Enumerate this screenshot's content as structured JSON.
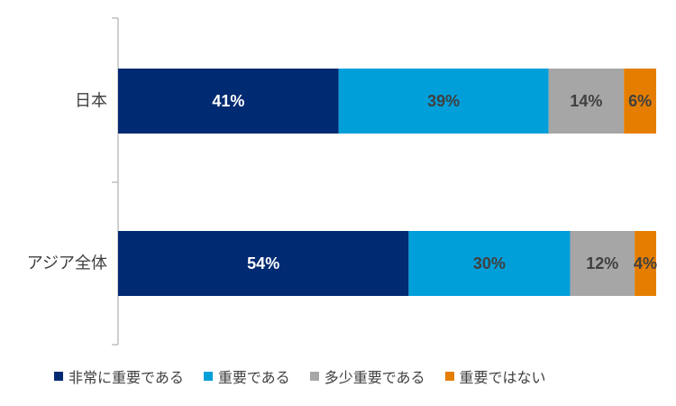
{
  "chart_data": {
    "type": "bar",
    "orientation": "horizontal",
    "stacked": true,
    "categories": [
      "日本",
      "アジア全体"
    ],
    "series": [
      {
        "name": "非常に重要である",
        "values": [
          41,
          54
        ],
        "color": "#002a72",
        "label_color": "#ffffff"
      },
      {
        "name": "重要である",
        "values": [
          39,
          30
        ],
        "color": "#009fda",
        "label_color": "#404040"
      },
      {
        "name": "多少重要である",
        "values": [
          14,
          12
        ],
        "color": "#a6a6a6",
        "label_color": "#404040"
      },
      {
        "name": "重要ではない",
        "values": [
          6,
          4
        ],
        "color": "#e57e00",
        "label_color": "#404040"
      }
    ],
    "value_labels": [
      [
        "41%",
        "39%",
        "14%",
        "6%"
      ],
      [
        "54%",
        "30%",
        "12%",
        "4%"
      ]
    ],
    "xlim": [
      0,
      100
    ],
    "grid": false,
    "legend_position": "bottom"
  }
}
